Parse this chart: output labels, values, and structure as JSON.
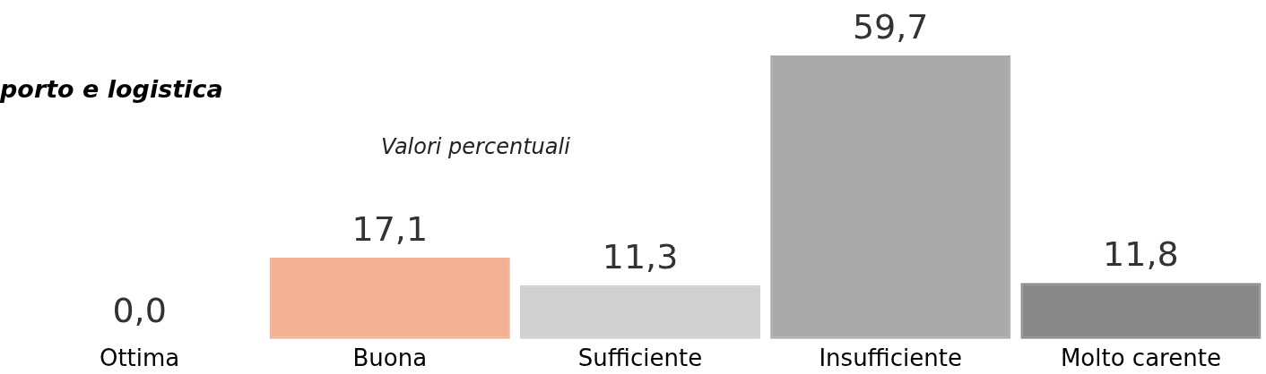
{
  "chart_data": {
    "type": "bar",
    "title": "porto e logistica",
    "subtitle": "Valori percentuali",
    "categories": [
      "Ottima",
      "Buona",
      "Sufficiente",
      "Insufficiente",
      "Molto carente"
    ],
    "values": [
      0.0,
      17.1,
      11.3,
      59.7,
      11.8
    ],
    "colors": [
      "#ed7d31",
      "#f4b093",
      "#d0d0d0",
      "#aaaaaa",
      "#888888"
    ],
    "value_labels": [
      "0,0",
      "17,1",
      "11,3",
      "59,7",
      "11,8"
    ]
  }
}
